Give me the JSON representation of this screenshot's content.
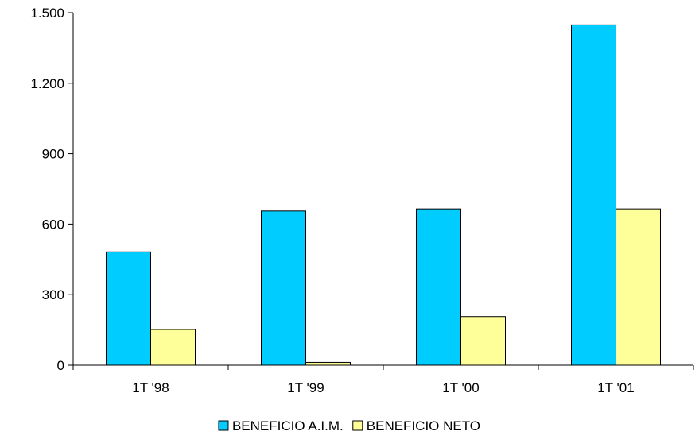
{
  "chart_data": {
    "type": "bar",
    "categories": [
      "1T '98",
      "1T '99",
      "1T '00",
      "1T '01"
    ],
    "series": [
      {
        "name": "BENEFICIO A.I.M.",
        "values": [
          482,
          656,
          665,
          1448
        ],
        "color": "#00ccff"
      },
      {
        "name": "BENEFICIO NETO",
        "values": [
          152,
          12,
          207,
          665
        ],
        "color": "#ffff99"
      }
    ],
    "ylim": [
      0,
      1500
    ],
    "yticks": [
      0,
      300,
      600,
      900,
      1200,
      1500
    ],
    "ytick_labels": [
      "0",
      "300",
      "600",
      "900",
      "1.200",
      "1.500"
    ],
    "grid": false,
    "legend_position": "bottom"
  }
}
